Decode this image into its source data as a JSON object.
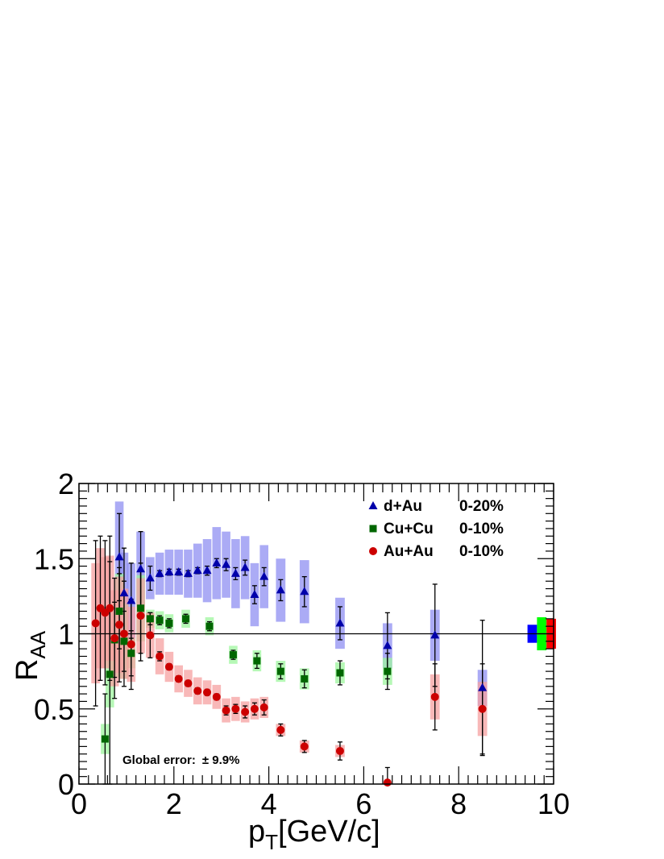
{
  "chart_data": {
    "type": "scatter",
    "xlabel": "p",
    "xlabel_sub": "T",
    "xlabel_unit": "[GeV/c]",
    "ylabel": "R",
    "ylabel_sub": "AA",
    "xlim": [
      0,
      10
    ],
    "ylim": [
      0,
      2
    ],
    "xticks": [
      "0",
      "2",
      "4",
      "6",
      "8",
      "10"
    ],
    "yticks": [
      "0",
      "0.5",
      "1",
      "1.5",
      "2"
    ],
    "grid": false,
    "reference_line_y": 1,
    "legend_position": "top-right",
    "annotation": {
      "prefix": "Global error:",
      "value": "± 9.9%"
    },
    "series": [
      {
        "name": "d+Au",
        "centrality": "0-20%",
        "marker": "triangle",
        "color": "#0000aa",
        "band_color": "#8f8ff2",
        "points": [
          {
            "x": 0.85,
            "y": 1.51,
            "stat": 0.29,
            "sys": 0.37
          },
          {
            "x": 0.95,
            "y": 1.27,
            "stat": 0.3,
            "sys": 0.27
          },
          {
            "x": 1.1,
            "y": 1.22,
            "stat": 0.25,
            "sys": 0.25
          },
          {
            "x": 1.3,
            "y": 1.43,
            "stat": 0.25,
            "sys": 0.25
          },
          {
            "x": 1.5,
            "y": 1.37,
            "stat": 0.08,
            "sys": 0.14
          },
          {
            "x": 1.7,
            "y": 1.4,
            "stat": 0.02,
            "sys": 0.14
          },
          {
            "x": 1.9,
            "y": 1.41,
            "stat": 0.02,
            "sys": 0.15
          },
          {
            "x": 2.1,
            "y": 1.41,
            "stat": 0.02,
            "sys": 0.15
          },
          {
            "x": 2.3,
            "y": 1.4,
            "stat": 0.02,
            "sys": 0.16
          },
          {
            "x": 2.5,
            "y": 1.42,
            "stat": 0.02,
            "sys": 0.18
          },
          {
            "x": 2.7,
            "y": 1.42,
            "stat": 0.03,
            "sys": 0.21
          },
          {
            "x": 2.9,
            "y": 1.47,
            "stat": 0.03,
            "sys": 0.24
          },
          {
            "x": 3.1,
            "y": 1.46,
            "stat": 0.04,
            "sys": 0.22
          },
          {
            "x": 3.3,
            "y": 1.4,
            "stat": 0.04,
            "sys": 0.23
          },
          {
            "x": 3.5,
            "y": 1.44,
            "stat": 0.05,
            "sys": 0.21
          },
          {
            "x": 3.7,
            "y": 1.26,
            "stat": 0.06,
            "sys": 0.21
          },
          {
            "x": 3.9,
            "y": 1.38,
            "stat": 0.06,
            "sys": 0.21
          },
          {
            "x": 4.25,
            "y": 1.29,
            "stat": 0.07,
            "sys": 0.21
          },
          {
            "x": 4.75,
            "y": 1.28,
            "stat": 0.1,
            "sys": 0.21
          },
          {
            "x": 5.5,
            "y": 1.07,
            "stat": 0.11,
            "sys": 0.17
          },
          {
            "x": 6.5,
            "y": 0.92,
            "stat": 0.22,
            "sys": 0.15
          },
          {
            "x": 7.5,
            "y": 0.99,
            "stat": 0.34,
            "sys": 0.17
          },
          {
            "x": 8.5,
            "y": 0.64,
            "stat": 0.45,
            "sys": 0.12
          }
        ]
      },
      {
        "name": "Cu+Cu",
        "centrality": "0-10%",
        "marker": "square",
        "color": "#006600",
        "band_color": "#9ef59e",
        "points": [
          {
            "x": 0.55,
            "y": 0.3,
            "stat": 0.3,
            "sys": 0.1
          },
          {
            "x": 0.65,
            "y": 0.73,
            "stat": 0.75,
            "sys": 0.22
          },
          {
            "x": 0.75,
            "y": 0.96,
            "stat": 0.25,
            "sys": 0.25
          },
          {
            "x": 0.85,
            "y": 1.15,
            "stat": 0.25,
            "sys": 0.25
          },
          {
            "x": 0.95,
            "y": 0.95,
            "stat": 0.2,
            "sys": 0.25
          },
          {
            "x": 1.1,
            "y": 0.87,
            "stat": 0.15,
            "sys": 0.1
          },
          {
            "x": 1.3,
            "y": 1.17,
            "stat": 0.3,
            "sys": 0.22
          },
          {
            "x": 1.5,
            "y": 1.1,
            "stat": 0.04,
            "sys": 0.06
          },
          {
            "x": 1.7,
            "y": 1.09,
            "stat": 0.03,
            "sys": 0.06
          },
          {
            "x": 1.9,
            "y": 1.07,
            "stat": 0.03,
            "sys": 0.06
          },
          {
            "x": 2.25,
            "y": 1.1,
            "stat": 0.03,
            "sys": 0.06
          },
          {
            "x": 2.75,
            "y": 1.05,
            "stat": 0.03,
            "sys": 0.06
          },
          {
            "x": 3.25,
            "y": 0.86,
            "stat": 0.03,
            "sys": 0.06
          },
          {
            "x": 3.75,
            "y": 0.82,
            "stat": 0.05,
            "sys": 0.07
          },
          {
            "x": 4.25,
            "y": 0.75,
            "stat": 0.05,
            "sys": 0.07
          },
          {
            "x": 4.75,
            "y": 0.7,
            "stat": 0.06,
            "sys": 0.07
          },
          {
            "x": 5.5,
            "y": 0.74,
            "stat": 0.08,
            "sys": 0.07
          },
          {
            "x": 6.5,
            "y": 0.75,
            "stat": 0.12,
            "sys": 0.09
          }
        ]
      },
      {
        "name": "Au+Au",
        "centrality": "0-10%",
        "marker": "circle",
        "color": "#cc0000",
        "band_color": "#f5a0a0",
        "points": [
          {
            "x": 0.35,
            "y": 1.07,
            "stat": 0.55,
            "sys": 0.4
          },
          {
            "x": 0.45,
            "y": 1.17,
            "stat": 0.48,
            "sys": 0.4
          },
          {
            "x": 0.55,
            "y": 1.14,
            "stat": 0.48,
            "sys": 0.37
          },
          {
            "x": 0.65,
            "y": 1.17,
            "stat": 0.48,
            "sys": 0.35
          },
          {
            "x": 0.75,
            "y": 0.97,
            "stat": 0.4,
            "sys": 0.32
          },
          {
            "x": 0.85,
            "y": 1.06,
            "stat": 0.38,
            "sys": 0.32
          },
          {
            "x": 0.95,
            "y": 1.0,
            "stat": 0.35,
            "sys": 0.3
          },
          {
            "x": 1.1,
            "y": 0.93,
            "stat": 0.3,
            "sys": 0.25
          },
          {
            "x": 1.3,
            "y": 1.12,
            "stat": 0.3,
            "sys": 0.25
          },
          {
            "x": 1.5,
            "y": 0.99,
            "stat": 0.15,
            "sys": 0.15
          },
          {
            "x": 1.7,
            "y": 0.85,
            "stat": 0.03,
            "sys": 0.12
          },
          {
            "x": 1.9,
            "y": 0.78,
            "stat": 0.02,
            "sys": 0.1
          },
          {
            "x": 2.1,
            "y": 0.7,
            "stat": 0.02,
            "sys": 0.09
          },
          {
            "x": 2.3,
            "y": 0.67,
            "stat": 0.02,
            "sys": 0.09
          },
          {
            "x": 2.5,
            "y": 0.62,
            "stat": 0.02,
            "sys": 0.09
          },
          {
            "x": 2.7,
            "y": 0.61,
            "stat": 0.02,
            "sys": 0.08
          },
          {
            "x": 2.9,
            "y": 0.58,
            "stat": 0.02,
            "sys": 0.08
          },
          {
            "x": 3.1,
            "y": 0.49,
            "stat": 0.03,
            "sys": 0.08
          },
          {
            "x": 3.3,
            "y": 0.5,
            "stat": 0.03,
            "sys": 0.08
          },
          {
            "x": 3.5,
            "y": 0.48,
            "stat": 0.04,
            "sys": 0.07
          },
          {
            "x": 3.7,
            "y": 0.5,
            "stat": 0.04,
            "sys": 0.07
          },
          {
            "x": 3.9,
            "y": 0.51,
            "stat": 0.05,
            "sys": 0.07
          },
          {
            "x": 4.25,
            "y": 0.36,
            "stat": 0.04,
            "sys": 0.04
          },
          {
            "x": 4.75,
            "y": 0.25,
            "stat": 0.04,
            "sys": 0.04
          },
          {
            "x": 5.5,
            "y": 0.22,
            "stat": 0.06,
            "sys": 0.04
          },
          {
            "x": 6.5,
            "y": 0.01,
            "stat": 0.1,
            "sys": 0.0
          },
          {
            "x": 7.5,
            "y": 0.58,
            "stat": 0.22,
            "sys": 0.15
          },
          {
            "x": 8.5,
            "y": 0.5,
            "stat": 0.3,
            "sys": 0.18
          }
        ]
      }
    ],
    "normalization_boxes": [
      {
        "series": "d+Au",
        "color": "#0000ff",
        "half_height": 0.06
      },
      {
        "series": "Cu+Cu",
        "color": "#00ff00",
        "half_height": 0.11
      },
      {
        "series": "Au+Au",
        "color": "#ff0000",
        "half_height": 0.1
      }
    ]
  }
}
